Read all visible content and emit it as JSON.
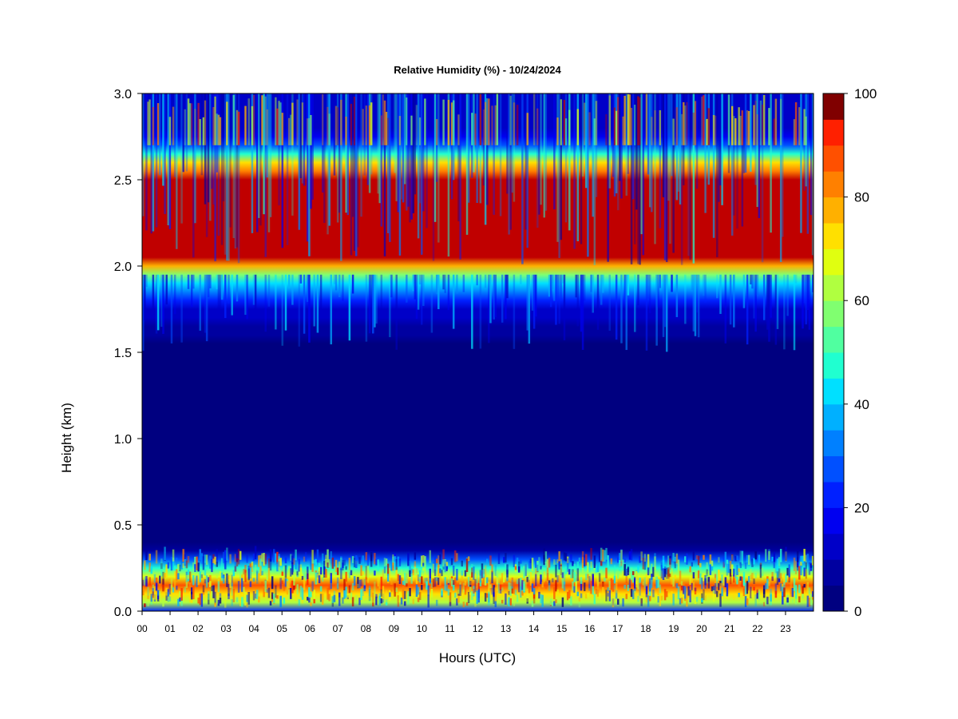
{
  "chart_data": {
    "type": "heatmap",
    "title": "Relative Humidity (%) - 10/24/2024",
    "xlabel": "Hours (UTC)",
    "ylabel": "Height (km)",
    "x_ticks": [
      "00",
      "01",
      "02",
      "03",
      "04",
      "05",
      "06",
      "07",
      "08",
      "09",
      "10",
      "11",
      "12",
      "13",
      "14",
      "15",
      "16",
      "17",
      "18",
      "19",
      "20",
      "21",
      "22",
      "23"
    ],
    "xlim": [
      0,
      24
    ],
    "y_ticks": [
      "0.0",
      "0.5",
      "1.0",
      "1.5",
      "2.0",
      "2.5",
      "3.0"
    ],
    "ylim": [
      0,
      3.0
    ],
    "colorbar": {
      "range": [
        0,
        100
      ],
      "ticks": [
        "0",
        "20",
        "40",
        "60",
        "80",
        "100"
      ],
      "levels": 20,
      "colors": [
        "#000080",
        "#0000a0",
        "#0000c8",
        "#0000f0",
        "#0020ff",
        "#0050ff",
        "#0080ff",
        "#00b0ff",
        "#00e0ff",
        "#20ffd0",
        "#50ffa0",
        "#80ff70",
        "#b0ff40",
        "#e0ff10",
        "#ffe000",
        "#ffb000",
        "#ff8000",
        "#ff5000",
        "#ff2000",
        "#c00000"
      ],
      "top_color": "#800000"
    },
    "profile": [
      {
        "height_km": 0.0,
        "rh": 20
      },
      {
        "height_km": 0.05,
        "rh": 60
      },
      {
        "height_km": 0.15,
        "rh": 85
      },
      {
        "height_km": 0.25,
        "rh": 45
      },
      {
        "height_km": 0.35,
        "rh": 5
      },
      {
        "height_km": 1.5,
        "rh": 3
      },
      {
        "height_km": 1.75,
        "rh": 12
      },
      {
        "height_km": 1.95,
        "rh": 55
      },
      {
        "height_km": 2.05,
        "rh": 97
      },
      {
        "height_km": 2.5,
        "rh": 98
      },
      {
        "height_km": 2.6,
        "rh": 70
      },
      {
        "height_km": 2.68,
        "rh": 30
      },
      {
        "height_km": 2.8,
        "rh": 12
      },
      {
        "height_km": 3.0,
        "rh": 10
      }
    ]
  }
}
